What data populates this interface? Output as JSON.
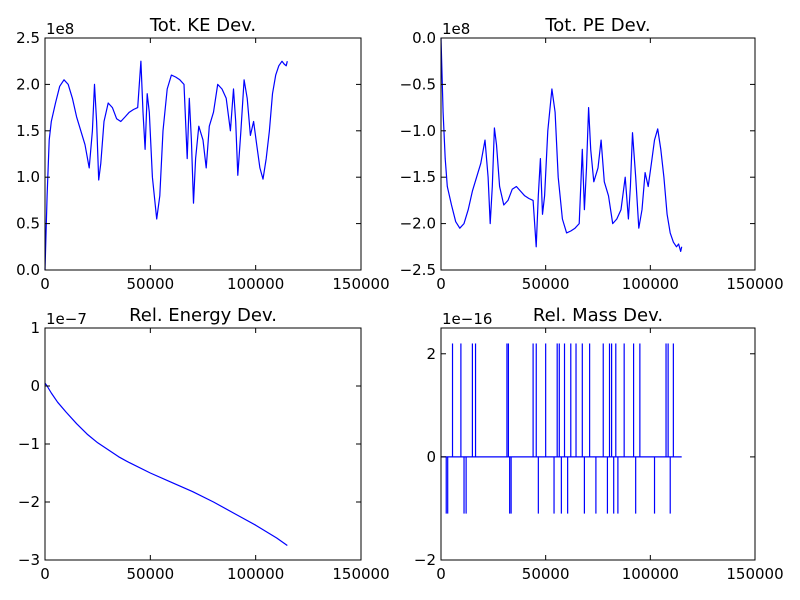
{
  "chart_data": [
    {
      "type": "line",
      "title": "Tot. KE Dev.",
      "offset_text": "1e8",
      "xlim": [
        0,
        150000
      ],
      "ylim": [
        0,
        2.5
      ],
      "xticks": [
        0,
        50000,
        100000,
        150000
      ],
      "xtick_labels": [
        "0",
        "50000",
        "100000",
        "150000"
      ],
      "yticks": [
        0,
        0.5,
        1.0,
        1.5,
        2.0,
        2.5
      ],
      "ytick_labels": [
        "0.0",
        "0.5",
        "1.0",
        "1.5",
        "2.0",
        "2.5"
      ],
      "series": [
        {
          "color": "#0000ff",
          "x": [
            0,
            1000,
            2000,
            3000,
            5000,
            7000,
            9000,
            11000,
            13000,
            15000,
            17000,
            19000,
            21000,
            22500,
            23500,
            24500,
            25500,
            26500,
            28000,
            30000,
            32000,
            34000,
            36000,
            38000,
            40000,
            42000,
            44000,
            45500,
            46500,
            47500,
            48500,
            49500,
            51000,
            53000,
            54500,
            56000,
            58000,
            60000,
            62000,
            64000,
            66000,
            67500,
            68500,
            69500,
            70500,
            71500,
            73000,
            75000,
            76500,
            78000,
            80000,
            82000,
            84000,
            86000,
            88000,
            89500,
            90500,
            91500,
            93000,
            94500,
            96000,
            97500,
            99000,
            100500,
            102000,
            103500,
            105000,
            106500,
            108000,
            109500,
            111000,
            112500,
            113500,
            114500,
            115000
          ],
          "y": [
            0.0,
            0.8,
            1.4,
            1.6,
            1.8,
            1.98,
            2.05,
            2.0,
            1.85,
            1.65,
            1.5,
            1.35,
            1.1,
            1.5,
            2.0,
            1.6,
            0.97,
            1.15,
            1.6,
            1.8,
            1.75,
            1.63,
            1.6,
            1.65,
            1.7,
            1.73,
            1.75,
            2.25,
            1.7,
            1.3,
            1.9,
            1.7,
            1.0,
            0.55,
            0.8,
            1.5,
            1.95,
            2.1,
            2.08,
            2.05,
            2.0,
            1.2,
            1.85,
            1.4,
            0.72,
            1.2,
            1.55,
            1.4,
            1.1,
            1.55,
            1.7,
            2.0,
            1.95,
            1.85,
            1.5,
            1.95,
            1.6,
            1.02,
            1.5,
            2.05,
            1.85,
            1.45,
            1.6,
            1.35,
            1.1,
            0.98,
            1.2,
            1.5,
            1.9,
            2.1,
            2.2,
            2.25,
            2.22,
            2.2,
            2.25
          ]
        }
      ]
    },
    {
      "type": "line",
      "title": "Tot. PE Dev.",
      "offset_text": "1e8",
      "xlim": [
        0,
        150000
      ],
      "ylim": [
        -2.5,
        0
      ],
      "xticks": [
        0,
        50000,
        100000,
        150000
      ],
      "xtick_labels": [
        "0",
        "50000",
        "100000",
        "150000"
      ],
      "yticks": [
        0,
        -0.5,
        -1.0,
        -1.5,
        -2.0,
        -2.5
      ],
      "ytick_labels": [
        "0.0",
        "−0.5",
        "−1.0",
        "−1.5",
        "−2.0",
        "−2.5"
      ],
      "series": [
        {
          "color": "#0000ff",
          "x": [
            0,
            1000,
            2000,
            3000,
            5000,
            7000,
            9000,
            11000,
            13000,
            15000,
            17000,
            19000,
            21000,
            22500,
            23500,
            24500,
            25500,
            26500,
            28000,
            30000,
            32000,
            34000,
            36000,
            38000,
            40000,
            42000,
            44000,
            45500,
            46500,
            47500,
            48500,
            49500,
            51000,
            53000,
            54500,
            56000,
            58000,
            60000,
            62000,
            64000,
            66000,
            67500,
            68500,
            69500,
            70500,
            71500,
            73000,
            75000,
            76500,
            78000,
            80000,
            82000,
            84000,
            86000,
            88000,
            89500,
            90500,
            91500,
            93000,
            94500,
            96000,
            97500,
            99000,
            100500,
            102000,
            103500,
            105000,
            106500,
            108000,
            109500,
            111000,
            112500,
            113500,
            114500,
            115000
          ],
          "y": [
            0.0,
            -0.8,
            -1.3,
            -1.6,
            -1.8,
            -1.98,
            -2.05,
            -2.0,
            -1.85,
            -1.65,
            -1.5,
            -1.35,
            -1.1,
            -1.5,
            -2.0,
            -1.6,
            -0.97,
            -1.15,
            -1.6,
            -1.8,
            -1.75,
            -1.63,
            -1.6,
            -1.65,
            -1.7,
            -1.73,
            -1.75,
            -2.25,
            -1.7,
            -1.3,
            -1.9,
            -1.7,
            -1.0,
            -0.55,
            -0.8,
            -1.5,
            -1.95,
            -2.1,
            -2.08,
            -2.05,
            -2.0,
            -1.2,
            -1.85,
            -1.4,
            -0.75,
            -1.2,
            -1.55,
            -1.4,
            -1.1,
            -1.55,
            -1.7,
            -2.0,
            -1.95,
            -1.85,
            -1.5,
            -1.95,
            -1.6,
            -1.02,
            -1.5,
            -2.05,
            -1.85,
            -1.45,
            -1.6,
            -1.35,
            -1.1,
            -0.98,
            -1.2,
            -1.5,
            -1.9,
            -2.1,
            -2.2,
            -2.25,
            -2.22,
            -2.3,
            -2.25
          ]
        }
      ]
    },
    {
      "type": "line",
      "title": "Rel. Energy Dev.",
      "offset_text": "1e−7",
      "xlim": [
        0,
        150000
      ],
      "ylim": [
        -3,
        1
      ],
      "xticks": [
        0,
        50000,
        100000,
        150000
      ],
      "xtick_labels": [
        "0",
        "50000",
        "100000",
        "150000"
      ],
      "yticks": [
        1,
        0,
        -1,
        -2,
        -3
      ],
      "ytick_labels": [
        "1",
        "0",
        "−1",
        "−2",
        "−3"
      ],
      "series": [
        {
          "color": "#0000ff",
          "x": [
            0,
            1000,
            3000,
            6000,
            10000,
            15000,
            20000,
            25000,
            30000,
            35000,
            40000,
            50000,
            60000,
            70000,
            80000,
            90000,
            100000,
            110000,
            115000
          ],
          "y": [
            0.05,
            0.0,
            -0.12,
            -0.28,
            -0.45,
            -0.65,
            -0.83,
            -0.98,
            -1.1,
            -1.22,
            -1.32,
            -1.5,
            -1.66,
            -1.82,
            -2.0,
            -2.2,
            -2.4,
            -2.62,
            -2.75
          ]
        }
      ]
    },
    {
      "type": "line",
      "title": "Rel. Mass Dev.",
      "offset_text": "1e−16",
      "xlim": [
        0,
        150000
      ],
      "ylim": [
        -2,
        2.5
      ],
      "xticks": [
        0,
        50000,
        100000,
        150000
      ],
      "xtick_labels": [
        "0",
        "50000",
        "100000",
        "150000"
      ],
      "yticks": [
        2,
        0,
        -2
      ],
      "ytick_labels": [
        "2",
        "0",
        "−2"
      ],
      "spikes": [
        {
          "x": 2500,
          "y": -1.1
        },
        {
          "x": 3200,
          "y": -1.1
        },
        {
          "x": 5500,
          "y": 2.2
        },
        {
          "x": 9500,
          "y": 2.2
        },
        {
          "x": 11000,
          "y": -1.1
        },
        {
          "x": 12000,
          "y": -1.1
        },
        {
          "x": 15000,
          "y": 2.2
        },
        {
          "x": 16500,
          "y": 2.2
        },
        {
          "x": 31500,
          "y": 2.2
        },
        {
          "x": 32200,
          "y": 2.2
        },
        {
          "x": 32800,
          "y": -1.1
        },
        {
          "x": 33500,
          "y": -1.1
        },
        {
          "x": 44000,
          "y": 2.2
        },
        {
          "x": 45500,
          "y": 2.2
        },
        {
          "x": 46500,
          "y": -1.1
        },
        {
          "x": 50000,
          "y": 2.2
        },
        {
          "x": 54000,
          "y": -1.1
        },
        {
          "x": 55500,
          "y": 2.2
        },
        {
          "x": 56500,
          "y": 2.2
        },
        {
          "x": 57500,
          "y": -1.1
        },
        {
          "x": 59000,
          "y": 2.2
        },
        {
          "x": 60500,
          "y": -1.1
        },
        {
          "x": 62000,
          "y": 2.2
        },
        {
          "x": 64500,
          "y": 2.2
        },
        {
          "x": 67500,
          "y": 2.2
        },
        {
          "x": 68500,
          "y": -1.1
        },
        {
          "x": 71000,
          "y": 2.2
        },
        {
          "x": 74000,
          "y": -1.1
        },
        {
          "x": 77500,
          "y": 2.2
        },
        {
          "x": 79500,
          "y": -1.1
        },
        {
          "x": 80500,
          "y": 2.2
        },
        {
          "x": 81500,
          "y": 2.2
        },
        {
          "x": 82500,
          "y": -1.1
        },
        {
          "x": 83500,
          "y": 2.2
        },
        {
          "x": 84500,
          "y": -1.1
        },
        {
          "x": 87500,
          "y": 2.2
        },
        {
          "x": 92000,
          "y": 2.2
        },
        {
          "x": 93000,
          "y": -1.1
        },
        {
          "x": 95000,
          "y": 2.2
        },
        {
          "x": 102000,
          "y": -1.1
        },
        {
          "x": 107500,
          "y": 2.2
        },
        {
          "x": 108500,
          "y": 2.2
        },
        {
          "x": 109500,
          "y": -1.1
        },
        {
          "x": 111000,
          "y": 2.2
        }
      ],
      "series": [
        {
          "color": "#0000ff",
          "x": [
            0,
            115000
          ],
          "y": [
            0,
            0
          ]
        }
      ]
    }
  ]
}
